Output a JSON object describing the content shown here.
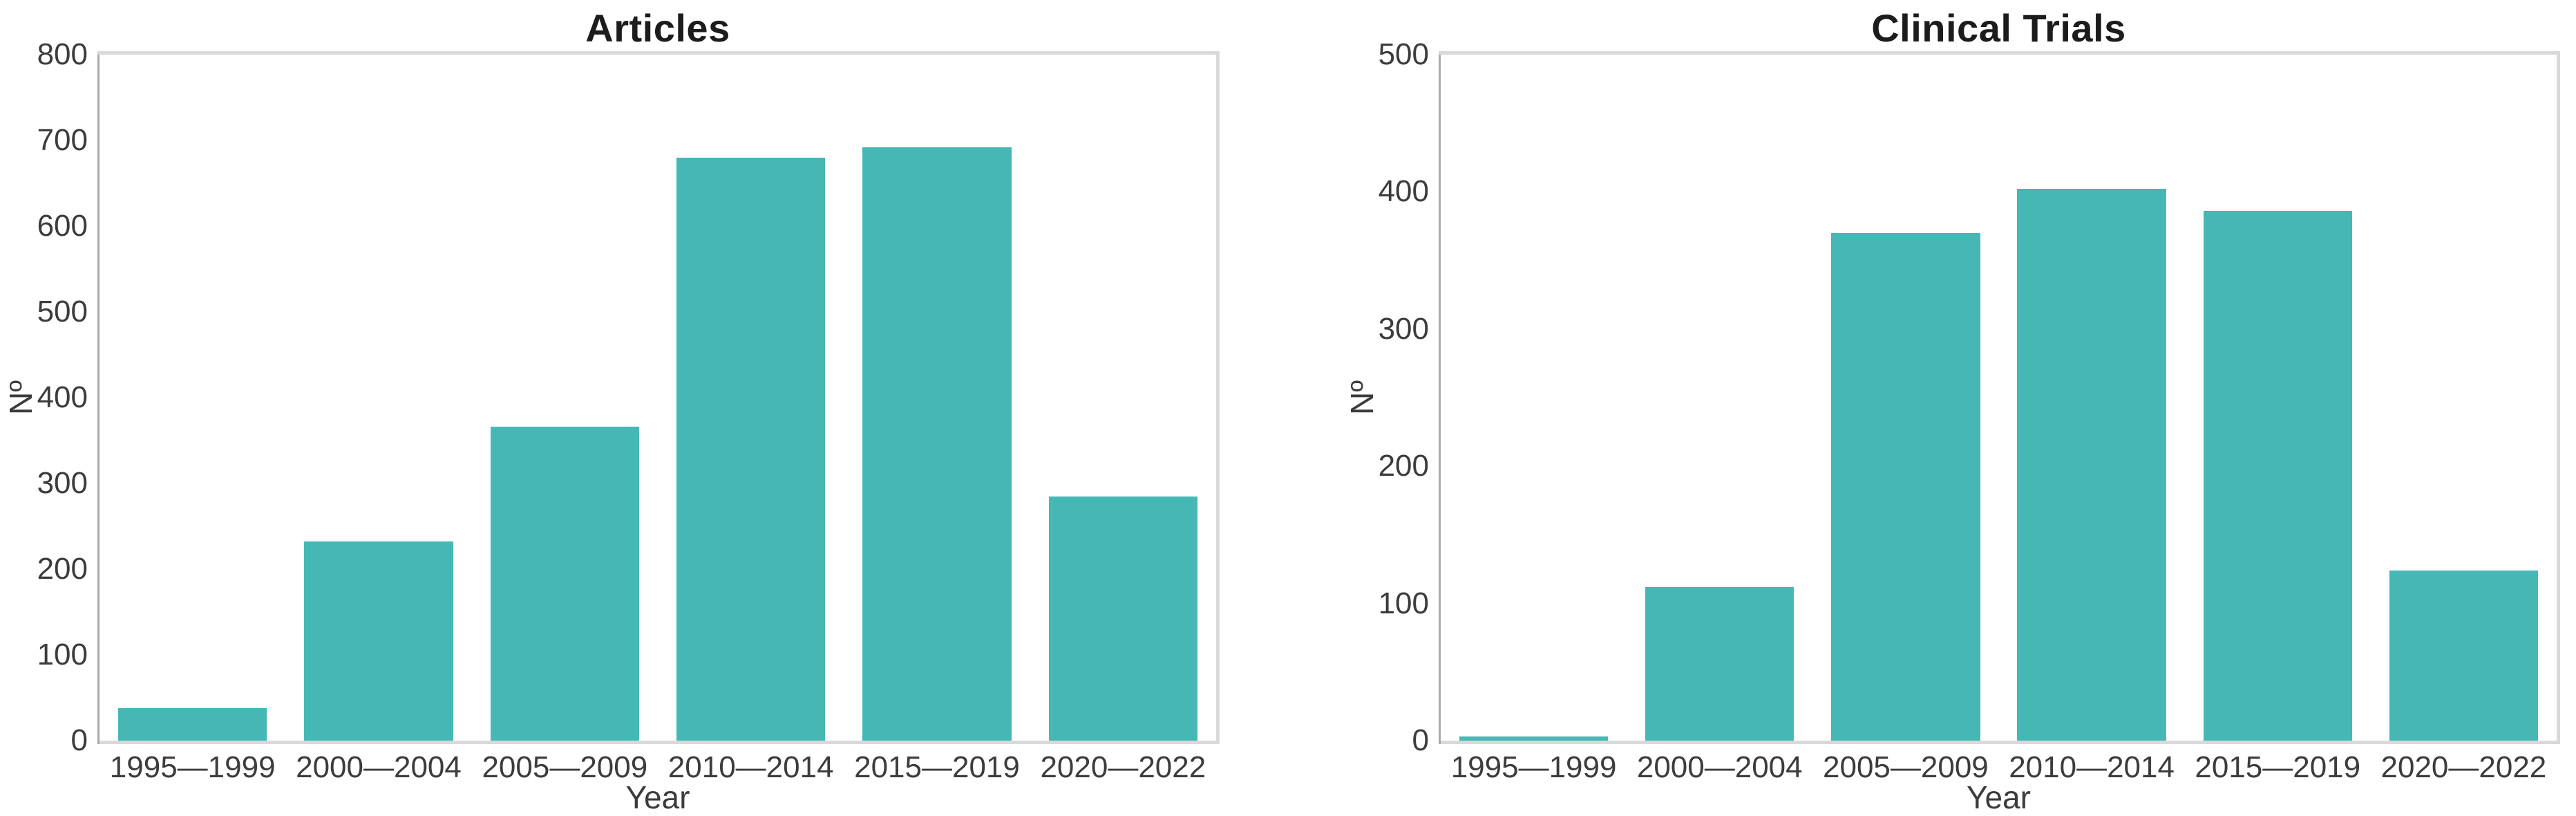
{
  "chart_data": [
    {
      "type": "bar",
      "title": "Articles",
      "xlabel": "Year",
      "ylabel": "Nº",
      "categories": [
        "1995—1999",
        "2000—2004",
        "2005—2009",
        "2010—2014",
        "2015—2019",
        "2020—2022"
      ],
      "values": [
        38,
        232,
        366,
        680,
        692,
        285
      ],
      "ylim": [
        0,
        800
      ],
      "yticks": [
        0,
        100,
        200,
        300,
        400,
        500,
        600,
        700,
        800
      ],
      "bar_color": "#45B8B5",
      "grid": false,
      "legend_position": "none"
    },
    {
      "type": "bar",
      "title": "Clinical Trials",
      "xlabel": "Year",
      "ylabel": "Nº",
      "categories": [
        "1995—1999",
        "2000—2004",
        "2005—2009",
        "2010—2014",
        "2015—2019",
        "2020—2022"
      ],
      "values": [
        3,
        112,
        370,
        402,
        386,
        124
      ],
      "ylim": [
        0,
        500
      ],
      "yticks": [
        0,
        100,
        200,
        300,
        400,
        500
      ],
      "bar_color": "#45B8B5",
      "grid": false,
      "legend_position": "none"
    }
  ]
}
